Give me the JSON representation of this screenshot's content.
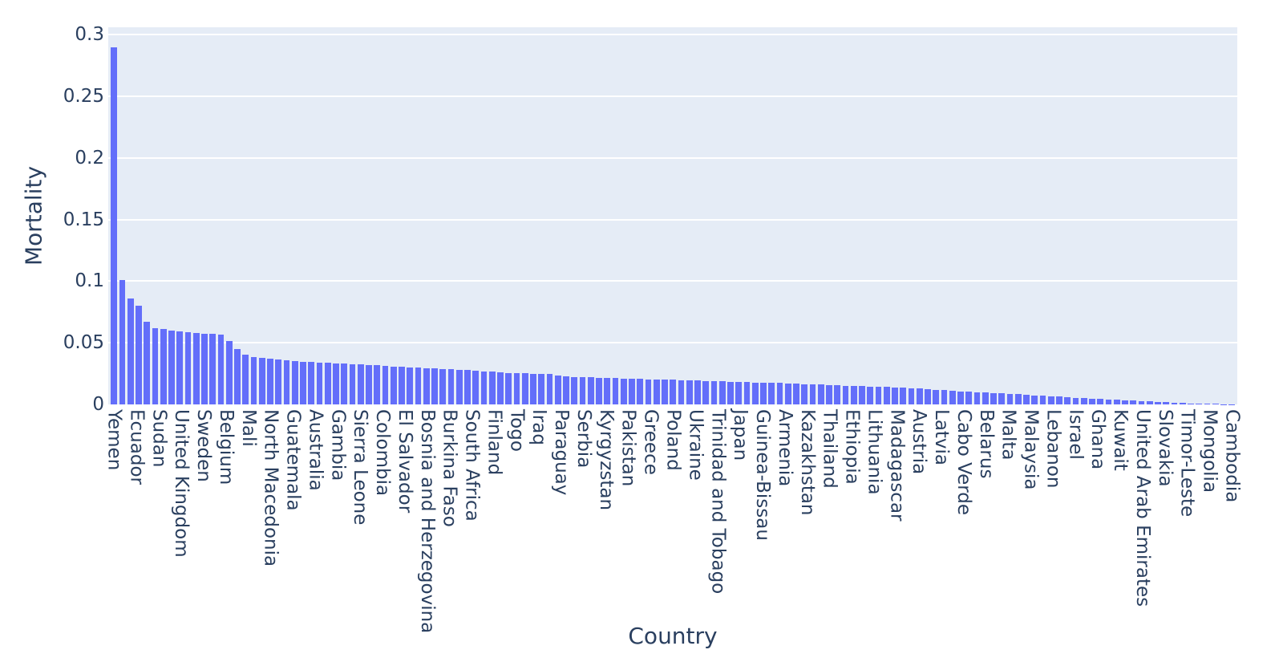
{
  "chart_data": {
    "type": "bar",
    "title": "",
    "xlabel": "Country",
    "ylabel": "Mortality",
    "ylim": [
      0,
      0.305
    ],
    "grid": true,
    "legend": false,
    "colors": {
      "bar": "#636EFA",
      "plot_background": "#E5ECF6",
      "gridline": "#ffffff",
      "font": "#2a3f5f"
    },
    "yticks": [
      {
        "value": 0,
        "label": "0"
      },
      {
        "value": 0.05,
        "label": "0.05"
      },
      {
        "value": 0.1,
        "label": "0.1"
      },
      {
        "value": 0.15,
        "label": "0.15"
      },
      {
        "value": 0.2,
        "label": "0.2"
      },
      {
        "value": 0.25,
        "label": "0.25"
      },
      {
        "value": 0.3,
        "label": "0.3"
      }
    ],
    "x_tick_labels": [
      "Yemen",
      "Ecuador",
      "Sudan",
      "United Kingdom",
      "Sweden",
      "Belgium",
      "Mali",
      "North Macedonia",
      "Guatemala",
      "Australia",
      "Gambia",
      "Sierra Leone",
      "Colombia",
      "El Salvador",
      "Bosnia and Herzegovina",
      "Burkina Faso",
      "South Africa",
      "Finland",
      "Togo",
      "Iraq",
      "Paraguay",
      "Serbia",
      "Kyrgyzstan",
      "Pakistan",
      "Greece",
      "Poland",
      "Ukraine",
      "Trinidad and Tobago",
      "Japan",
      "Guinea-Bissau",
      "Armenia",
      "Kazakhstan",
      "Thailand",
      "Ethiopia",
      "Lithuania",
      "Madagascar",
      "Austria",
      "Latvia",
      "Cabo Verde",
      "Belarus",
      "Malta",
      "Malaysia",
      "Lebanon",
      "Israel",
      "Ghana",
      "Kuwait",
      "United Arab Emirates",
      "Slovakia",
      "Timor-Leste",
      "Mongolia",
      "Cambodia"
    ],
    "values": [
      0.29,
      0.101,
      0.086,
      0.08,
      0.067,
      0.062,
      0.061,
      0.06,
      0.059,
      0.0585,
      0.058,
      0.0575,
      0.057,
      0.0565,
      0.0515,
      0.045,
      0.0405,
      0.0385,
      0.038,
      0.037,
      0.0365,
      0.0355,
      0.035,
      0.0345,
      0.0342,
      0.034,
      0.0337,
      0.0334,
      0.033,
      0.0327,
      0.0324,
      0.032,
      0.0316,
      0.0312,
      0.0308,
      0.0304,
      0.03,
      0.0298,
      0.0295,
      0.0292,
      0.0289,
      0.0286,
      0.0283,
      0.028,
      0.0275,
      0.027,
      0.0265,
      0.026,
      0.0257,
      0.0254,
      0.0252,
      0.025,
      0.0248,
      0.0246,
      0.0232,
      0.0228,
      0.0224,
      0.0221,
      0.0219,
      0.0217,
      0.0215,
      0.0213,
      0.0211,
      0.0209,
      0.0207,
      0.0205,
      0.0203,
      0.0201,
      0.0199,
      0.0197,
      0.0195,
      0.0193,
      0.0191,
      0.0189,
      0.0187,
      0.0185,
      0.0183,
      0.0181,
      0.0179,
      0.0177,
      0.0175,
      0.0173,
      0.0171,
      0.0169,
      0.0166,
      0.0163,
      0.016,
      0.0157,
      0.0154,
      0.0151,
      0.0149,
      0.0147,
      0.0145,
      0.0143,
      0.0141,
      0.0139,
      0.0136,
      0.0133,
      0.013,
      0.0125,
      0.012,
      0.0115,
      0.011,
      0.0107,
      0.0104,
      0.0101,
      0.0098,
      0.0094,
      0.009,
      0.0086,
      0.0082,
      0.0078,
      0.0074,
      0.007,
      0.0066,
      0.0062,
      0.0058,
      0.0054,
      0.005,
      0.0047,
      0.0044,
      0.0041,
      0.0038,
      0.0035,
      0.0032,
      0.0028,
      0.0024,
      0.002,
      0.0017,
      0.0014,
      0.0011,
      0.0008,
      0.0006,
      0.0005,
      0.0004,
      0.0003,
      0.0002
    ],
    "layout_hints": {
      "n_bars": 137,
      "x_ticks_evenly_spaced": true,
      "x_tick_angle_deg": 90,
      "legend_position": "none"
    }
  }
}
